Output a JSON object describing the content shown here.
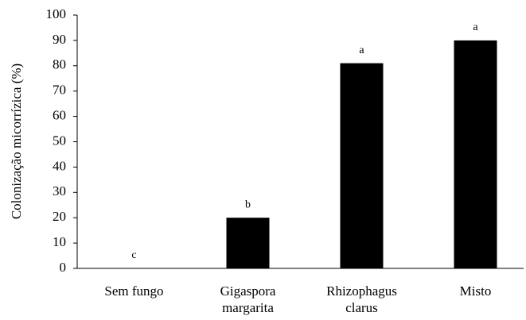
{
  "chart_data": {
    "type": "bar",
    "y_label": "Colonização micorrízica (%)",
    "categories": [
      [
        "Sem fungo"
      ],
      [
        "Gigaspora",
        "margarita"
      ],
      [
        "Rhizophagus",
        "clarus"
      ],
      [
        "Misto"
      ]
    ],
    "values": [
      0,
      20,
      81,
      90
    ],
    "annotations": [
      "c",
      "b",
      "a",
      "a"
    ],
    "color": "#000000",
    "ylim": [
      0,
      100
    ],
    "yticks": [
      0,
      10,
      20,
      30,
      40,
      50,
      60,
      70,
      80,
      90,
      100
    ],
    "grid": false
  }
}
